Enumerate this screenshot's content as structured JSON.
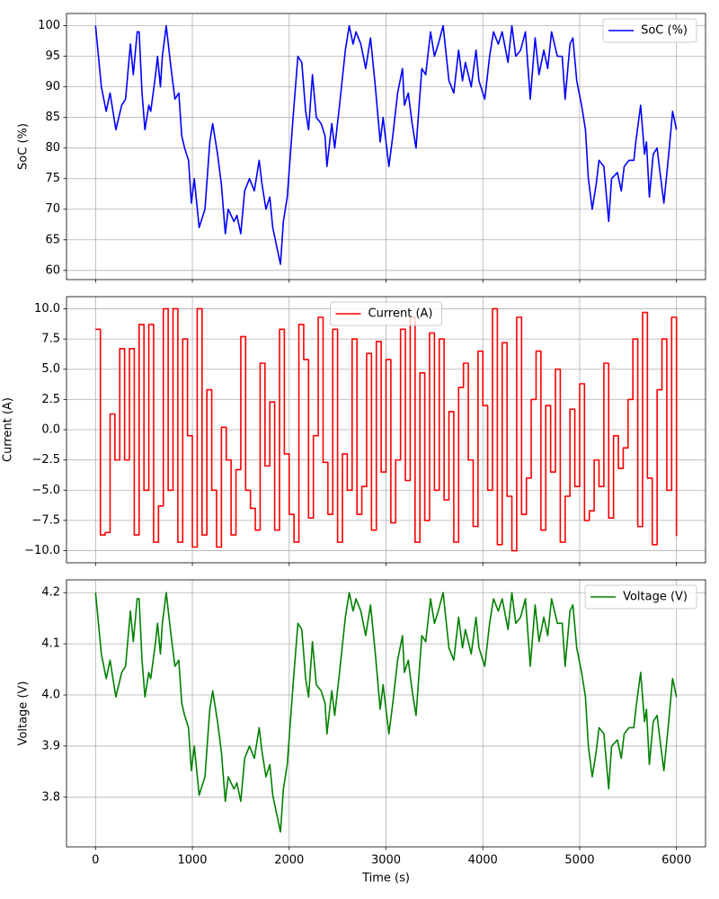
{
  "sharex": true,
  "chart_data": [
    {
      "type": "line",
      "ylabel": "SoC (%)",
      "grid": true,
      "legend": "upper right",
      "xlim": [
        -300,
        6300
      ],
      "xticks": [
        0,
        1000,
        2000,
        3000,
        4000,
        5000,
        6000
      ],
      "ylim": [
        58.5,
        102
      ],
      "yticks": [
        60,
        65,
        70,
        75,
        80,
        85,
        90,
        95,
        100
      ],
      "x": [
        0,
        60,
        110,
        150,
        210,
        270,
        310,
        360,
        390,
        430,
        450,
        480,
        510,
        550,
        570,
        620,
        640,
        670,
        690,
        730,
        780,
        820,
        860,
        890,
        920,
        960,
        990,
        1020,
        1070,
        1130,
        1180,
        1210,
        1260,
        1300,
        1340,
        1370,
        1430,
        1460,
        1500,
        1540,
        1590,
        1640,
        1690,
        1720,
        1760,
        1800,
        1830,
        1910,
        1940,
        1980,
        2040,
        2090,
        2130,
        2170,
        2200,
        2240,
        2280,
        2330,
        2370,
        2390,
        2440,
        2470,
        2520,
        2580,
        2620,
        2660,
        2690,
        2740,
        2790,
        2840,
        2890,
        2940,
        2970,
        3030,
        3070,
        3120,
        3170,
        3190,
        3230,
        3270,
        3310,
        3370,
        3410,
        3460,
        3500,
        3540,
        3590,
        3650,
        3700,
        3750,
        3790,
        3820,
        3880,
        3930,
        3960,
        4020,
        4070,
        4110,
        4160,
        4200,
        4260,
        4300,
        4340,
        4390,
        4440,
        4490,
        4540,
        4580,
        4630,
        4670,
        4710,
        4770,
        4820,
        4850,
        4900,
        4930,
        4970,
        5020,
        5060,
        5090,
        5130,
        5170,
        5200,
        5250,
        5300,
        5330,
        5390,
        5430,
        5460,
        5510,
        5560,
        5580,
        5630,
        5670,
        5690,
        5720,
        5760,
        5800,
        5830,
        5870,
        5920,
        5960,
        6000
      ],
      "series": [
        {
          "name": "SoC (%)",
          "color": "#0000ff",
          "values": [
            100,
            90,
            86,
            89,
            83,
            87,
            88,
            97,
            92,
            99,
            99,
            89,
            83,
            87,
            86,
            92,
            95,
            90,
            95,
            100,
            93,
            88,
            89,
            82,
            80,
            78,
            71,
            75,
            67,
            70,
            81,
            84,
            79,
            74,
            66,
            70,
            68,
            69,
            66,
            73,
            75,
            73,
            78,
            74,
            70,
            72,
            67,
            61,
            68,
            72,
            85,
            95,
            94,
            86,
            83,
            92,
            85,
            84,
            82,
            77,
            84,
            80,
            87,
            96,
            100,
            97,
            99,
            97,
            93,
            98,
            90,
            81,
            85,
            77,
            82,
            89,
            93,
            87,
            89,
            84,
            80,
            93,
            92,
            99,
            95,
            97,
            100,
            91,
            89,
            96,
            91,
            94,
            90,
            96,
            91,
            88,
            95,
            99,
            97,
            99,
            94,
            100,
            95,
            96,
            99,
            88,
            98,
            92,
            96,
            93,
            99,
            95,
            95,
            88,
            97,
            98,
            91,
            87,
            83,
            75,
            70,
            74,
            78,
            77,
            68,
            75,
            76,
            73,
            77,
            78,
            78,
            81,
            87,
            79,
            81,
            72,
            79,
            80,
            76,
            71,
            79,
            86,
            83
          ]
        }
      ]
    },
    {
      "type": "line",
      "ylabel": "Current (A)",
      "grid": true,
      "legend": "upper center",
      "drawstyle": "steps-post",
      "xlim": [
        -300,
        6300
      ],
      "xticks": [
        0,
        1000,
        2000,
        3000,
        4000,
        5000,
        6000
      ],
      "ylim": [
        -11,
        11
      ],
      "yticks": [
        {
          "value": -10,
          "label": "−10.0"
        },
        {
          "value": -7.5,
          "label": "−7.5"
        },
        {
          "value": -5,
          "label": "−5.0"
        },
        {
          "value": -2.5,
          "label": "−2.5"
        },
        {
          "value": 0,
          "label": "0.0"
        },
        2.5,
        {
          "value": 5,
          "label": "5.0"
        },
        7.5,
        {
          "value": 10,
          "label": "10.0"
        }
      ],
      "x": [
        0,
        50,
        100,
        150,
        200,
        250,
        300,
        350,
        400,
        450,
        500,
        550,
        600,
        650,
        700,
        750,
        800,
        850,
        900,
        950,
        1000,
        1050,
        1100,
        1150,
        1200,
        1250,
        1300,
        1350,
        1400,
        1450,
        1500,
        1550,
        1600,
        1650,
        1700,
        1750,
        1800,
        1850,
        1900,
        1950,
        2000,
        2050,
        2100,
        2150,
        2200,
        2250,
        2300,
        2350,
        2400,
        2450,
        2500,
        2550,
        2600,
        2650,
        2700,
        2750,
        2800,
        2850,
        2900,
        2950,
        3000,
        3050,
        3100,
        3150,
        3200,
        3250,
        3300,
        3350,
        3400,
        3450,
        3500,
        3550,
        3600,
        3650,
        3700,
        3750,
        3800,
        3850,
        3900,
        3950,
        4000,
        4050,
        4100,
        4150,
        4200,
        4250,
        4300,
        4350,
        4400,
        4450,
        4500,
        4550,
        4600,
        4650,
        4700,
        4750,
        4800,
        4850,
        4900,
        4950,
        5000,
        5050,
        5100,
        5150,
        5200,
        5250,
        5300,
        5350,
        5400,
        5450,
        5500,
        5550,
        5600,
        5650,
        5700,
        5750,
        5800,
        5850,
        5900,
        5950,
        6000
      ],
      "series": [
        {
          "name": "Current (A)",
          "color": "#ff0000",
          "values": [
            8.3,
            -8.7,
            -8.5,
            1.3,
            -2.5,
            6.7,
            -2.5,
            6.7,
            -8.7,
            8.7,
            -5.0,
            8.7,
            -9.3,
            -6.3,
            10,
            -5.0,
            10,
            -9.3,
            7.5,
            -0.5,
            -9.7,
            10,
            -8.7,
            3.3,
            -5.0,
            -9.7,
            0.2,
            -2.5,
            -8.7,
            -3.3,
            7.7,
            -5.0,
            -6.5,
            -8.3,
            5.5,
            -3.0,
            2.3,
            -8.3,
            8.3,
            -2.0,
            -7.0,
            -9.3,
            8.7,
            5.8,
            -7.3,
            -0.5,
            9.3,
            -2.7,
            -7.0,
            8.3,
            -9.3,
            -2.0,
            -5.0,
            7.5,
            -7.0,
            -4.7,
            6.3,
            -8.3,
            7.3,
            -3.5,
            5.8,
            -7.7,
            -2.5,
            8.3,
            -4.2,
            9.3,
            -9.3,
            4.7,
            -7.5,
            8.0,
            -5.0,
            7.5,
            -5.8,
            1.5,
            -9.3,
            3.5,
            5.5,
            -2.5,
            -8.0,
            6.5,
            2.0,
            -5.0,
            10,
            -9.5,
            7.2,
            -5.5,
            -10,
            9.3,
            -7.0,
            -4.0,
            2.5,
            6.5,
            -8.3,
            2.0,
            -3.5,
            5.0,
            -9.3,
            -5.5,
            1.7,
            -4.7,
            3.8,
            -7.5,
            -6.7,
            -2.5,
            -4.7,
            5.5,
            -7.3,
            -0.5,
            -3.2,
            -1.5,
            2.5,
            7.5,
            -8.0,
            9.7,
            -4.0,
            -9.5,
            3.3,
            7.5,
            -5.0,
            9.3,
            -8.8
          ]
        }
      ]
    },
    {
      "type": "line",
      "xlabel": "Time (s)",
      "ylabel": "Voltage (V)",
      "grid": true,
      "legend": "upper right",
      "xlim": [
        -300,
        6300
      ],
      "xticks": [
        0,
        1000,
        2000,
        3000,
        4000,
        5000,
        6000
      ],
      "ylim": [
        3.703,
        4.225
      ],
      "yticks": [
        3.8,
        3.9,
        {
          "value": 4.0,
          "label": "4.0"
        },
        4.1,
        4.2
      ],
      "x": [
        0,
        60,
        110,
        150,
        210,
        270,
        310,
        360,
        390,
        430,
        450,
        480,
        510,
        550,
        570,
        620,
        640,
        670,
        690,
        730,
        780,
        820,
        860,
        890,
        920,
        960,
        990,
        1020,
        1070,
        1130,
        1180,
        1210,
        1260,
        1300,
        1340,
        1370,
        1430,
        1460,
        1500,
        1540,
        1590,
        1640,
        1690,
        1720,
        1760,
        1800,
        1830,
        1910,
        1940,
        1980,
        2040,
        2090,
        2130,
        2170,
        2200,
        2240,
        2280,
        2330,
        2370,
        2390,
        2440,
        2470,
        2520,
        2580,
        2620,
        2660,
        2690,
        2740,
        2790,
        2840,
        2890,
        2940,
        2970,
        3030,
        3070,
        3120,
        3170,
        3190,
        3230,
        3270,
        3310,
        3370,
        3410,
        3460,
        3500,
        3540,
        3590,
        3650,
        3700,
        3750,
        3790,
        3820,
        3880,
        3930,
        3960,
        4020,
        4070,
        4110,
        4160,
        4200,
        4260,
        4300,
        4340,
        4390,
        4440,
        4490,
        4540,
        4580,
        4630,
        4670,
        4710,
        4770,
        4820,
        4850,
        4900,
        4930,
        4970,
        5020,
        5060,
        5090,
        5130,
        5170,
        5200,
        5250,
        5300,
        5330,
        5390,
        5430,
        5460,
        5510,
        5560,
        5580,
        5630,
        5670,
        5690,
        5720,
        5760,
        5800,
        5830,
        5870,
        5920,
        5960,
        6000
      ],
      "series": [
        {
          "name": "Voltage (V)",
          "color": "#008000",
          "values": [
            4.2,
            4.08,
            4.032,
            4.068,
            3.996,
            4.044,
            4.056,
            4.164,
            4.104,
            4.188,
            4.188,
            4.068,
            3.996,
            4.044,
            4.032,
            4.104,
            4.14,
            4.08,
            4.14,
            4.2,
            4.116,
            4.056,
            4.068,
            3.984,
            3.96,
            3.936,
            3.852,
            3.9,
            3.804,
            3.84,
            3.972,
            4.008,
            3.948,
            3.888,
            3.792,
            3.84,
            3.816,
            3.828,
            3.792,
            3.876,
            3.9,
            3.876,
            3.936,
            3.888,
            3.84,
            3.864,
            3.804,
            3.732,
            3.816,
            3.864,
            4.02,
            4.14,
            4.128,
            4.032,
            3.996,
            4.104,
            4.02,
            4.008,
            3.984,
            3.924,
            4.008,
            3.96,
            4.044,
            4.152,
            4.2,
            4.164,
            4.188,
            4.164,
            4.116,
            4.176,
            4.08,
            3.972,
            4.02,
            3.924,
            3.984,
            4.068,
            4.116,
            4.044,
            4.068,
            4.008,
            3.96,
            4.116,
            4.104,
            4.188,
            4.14,
            4.164,
            4.2,
            4.092,
            4.068,
            4.152,
            4.092,
            4.128,
            4.08,
            4.152,
            4.092,
            4.056,
            4.14,
            4.188,
            4.164,
            4.188,
            4.128,
            4.2,
            4.14,
            4.152,
            4.188,
            4.056,
            4.176,
            4.104,
            4.152,
            4.116,
            4.188,
            4.14,
            4.14,
            4.056,
            4.164,
            4.176,
            4.092,
            4.044,
            3.996,
            3.9,
            3.84,
            3.888,
            3.936,
            3.924,
            3.816,
            3.9,
            3.912,
            3.876,
            3.924,
            3.936,
            3.936,
            3.972,
            4.044,
            3.948,
            3.972,
            3.864,
            3.948,
            3.96,
            3.912,
            3.852,
            3.948,
            4.032,
            3.996
          ]
        }
      ]
    }
  ]
}
